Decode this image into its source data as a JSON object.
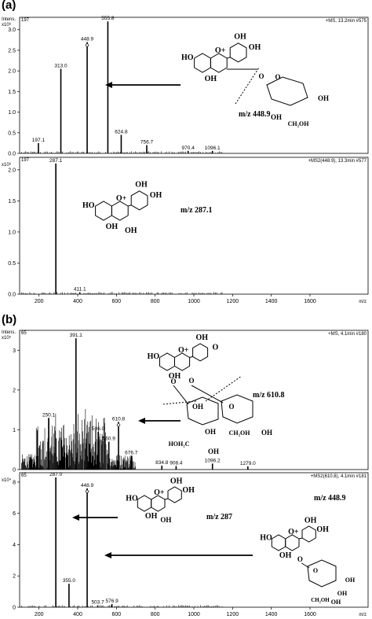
{
  "figure": {
    "panel_a_label": "(a)",
    "panel_b_label": "(b)"
  },
  "chart_data": [
    {
      "type": "bar",
      "panel": "a",
      "subplot": "top",
      "header_left": "Intens.",
      "y_multiplier": "x10⁶",
      "y_tick_labels": [
        "0.0",
        "0.5",
        "1.0",
        "1.5",
        "2.0",
        "2.5",
        "3.0"
      ],
      "ylim": [
        0,
        3.3
      ],
      "xlim": [
        100,
        1900
      ],
      "header_file_id": "197",
      "header_right": "+MS, 13.2min #575",
      "peaks": [
        {
          "mz": 197.1,
          "intensity": 0.25,
          "label": "197.1"
        },
        {
          "mz": 313.0,
          "intensity": 2.05,
          "label": "313.0"
        },
        {
          "mz": 448.9,
          "intensity": 2.7,
          "label": "448.9"
        },
        {
          "mz": 555.8,
          "intensity": 3.2,
          "label": "555.8"
        },
        {
          "mz": 624.8,
          "intensity": 0.45,
          "label": "624.8"
        },
        {
          "mz": 756.7,
          "intensity": 0.2,
          "label": "756.7"
        },
        {
          "mz": 970.4,
          "intensity": 0.06,
          "label": "970.4"
        },
        {
          "mz": 1096.1,
          "intensity": 0.06,
          "label": "1096.1"
        }
      ],
      "precursor_marker_mz": 448.9,
      "annotation": "m/z 448.9"
    },
    {
      "type": "bar",
      "panel": "a",
      "subplot": "bottom",
      "y_multiplier": "x10⁶",
      "y_tick_labels": [
        "0.0",
        "0.5",
        "1.0",
        "1.5",
        "2.0"
      ],
      "ylim": [
        0,
        2.2
      ],
      "xlim": [
        100,
        1900
      ],
      "x_ticks": [
        200,
        400,
        600,
        800,
        1000,
        1200,
        1400,
        1600
      ],
      "xlabel": "m/z",
      "header_file_id": "197",
      "header_right": "+MS2(448.9), 13.3min #577",
      "peaks": [
        {
          "mz": 287.1,
          "intensity": 2.1,
          "label": "287.1"
        },
        {
          "mz": 411.1,
          "intensity": 0.03,
          "label": "411.1"
        }
      ],
      "annotation": "m/z 287.1"
    },
    {
      "type": "bar",
      "panel": "b",
      "subplot": "top",
      "header_left": "Intens.",
      "y_multiplier": "x10⁵",
      "y_tick_labels": [
        "0",
        "1",
        "2",
        "3"
      ],
      "ylim": [
        0,
        3.5
      ],
      "xlim": [
        100,
        1900
      ],
      "header_file_id": "65",
      "header_right": "+MS, 4.1min #180",
      "peaks": [
        {
          "mz": 250.1,
          "intensity": 1.3,
          "label": "250.1"
        },
        {
          "mz": 391.1,
          "intensity": 3.3,
          "label": "391.1"
        },
        {
          "mz": 506.0,
          "intensity": 0.95,
          "label": "506.0"
        },
        {
          "mz": 560.9,
          "intensity": 0.7,
          "label": "560.9"
        },
        {
          "mz": 610.8,
          "intensity": 1.2,
          "label": "610.8"
        },
        {
          "mz": 676.7,
          "intensity": 0.35,
          "label": "676.7"
        },
        {
          "mz": 834.8,
          "intensity": 0.1,
          "label": "834.8"
        },
        {
          "mz": 908.4,
          "intensity": 0.09,
          "label": "908.4"
        },
        {
          "mz": 1096.2,
          "intensity": 0.15,
          "label": "1096.2"
        },
        {
          "mz": 1279.0,
          "intensity": 0.08,
          "label": "1279.0"
        }
      ],
      "precursor_marker_mz": 610.8,
      "annotation": "m/z 610.8"
    },
    {
      "type": "bar",
      "panel": "b",
      "subplot": "bottom",
      "y_multiplier": "x10⁴",
      "y_tick_labels": [
        "0",
        "2",
        "4",
        "6",
        "8"
      ],
      "ylim": [
        0,
        8.6
      ],
      "xlim": [
        100,
        1900
      ],
      "x_ticks": [
        200,
        400,
        600,
        800,
        1000,
        1200,
        1400,
        1600
      ],
      "xlabel": "m/z",
      "header_file_id": "65",
      "header_right": "+MS2(610.8), 4.1min #181",
      "peaks": [
        {
          "mz": 287.0,
          "intensity": 8.3,
          "label": "287.0"
        },
        {
          "mz": 355.0,
          "intensity": 1.5,
          "label": "355.0"
        },
        {
          "mz": 448.9,
          "intensity": 7.6,
          "label": "448.9"
        },
        {
          "mz": 503.7,
          "intensity": 0.12,
          "label": "503.7"
        },
        {
          "mz": 576.9,
          "intensity": 0.2,
          "label": "576.9"
        }
      ],
      "precursor_marker_mz": 448.9,
      "annotations": [
        "m/z 287",
        "m/z 448.9"
      ]
    }
  ],
  "structures": {
    "a_top": {
      "atoms": [
        "HO",
        "O+",
        "OH",
        "OH",
        "OH",
        "O",
        "O",
        "OH",
        "OH",
        "CH₂OH"
      ]
    },
    "a_bottom": {
      "atoms": [
        "HO",
        "O+",
        "OH",
        "OH",
        "OH",
        "OH"
      ]
    },
    "b_top": {
      "atoms": [
        "HO",
        "O+",
        "OH",
        "OH",
        "O",
        "O",
        "OH",
        "HOH₂C",
        "OH",
        "O",
        "O",
        "OH",
        "CH₂OH",
        "OH"
      ]
    },
    "b_bottom_left": {
      "atoms": [
        "HO",
        "O+",
        "OH",
        "OH",
        "OH",
        "OH"
      ]
    },
    "b_bottom_right": {
      "atoms": [
        "HO",
        "O+",
        "OH",
        "OH",
        "OH",
        "O",
        "OH",
        "OH",
        "CH₂OH",
        "OH"
      ]
    }
  }
}
